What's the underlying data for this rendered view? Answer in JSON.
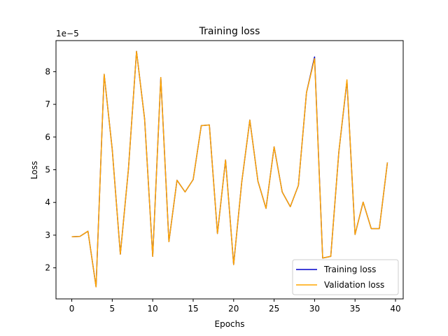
{
  "chart_data": {
    "type": "line",
    "title": "Training loss",
    "xlabel": "Epochs",
    "ylabel": "Loss",
    "y_offset_label": "1e−5",
    "xlim": [
      -1.95,
      40.95
    ],
    "ylim": [
      1.05,
      8.95
    ],
    "xticks": [
      0,
      5,
      10,
      15,
      20,
      25,
      30,
      35,
      40
    ],
    "xtick_labels": [
      "0",
      "5",
      "10",
      "15",
      "20",
      "25",
      "30",
      "35",
      "40"
    ],
    "yticks": [
      2,
      3,
      4,
      5,
      6,
      7,
      8
    ],
    "ytick_labels": [
      "2",
      "3",
      "4",
      "5",
      "6",
      "7",
      "8"
    ],
    "grid": false,
    "legend_position": "bottom-right",
    "x": [
      0,
      1,
      2,
      3,
      4,
      5,
      6,
      7,
      8,
      9,
      10,
      11,
      12,
      13,
      14,
      15,
      16,
      17,
      18,
      19,
      20,
      21,
      22,
      23,
      24,
      25,
      26,
      27,
      28,
      29,
      30,
      31,
      32,
      33,
      34,
      35,
      36,
      37,
      38,
      39
    ],
    "series": [
      {
        "name": "Training loss",
        "color": "#0000cc",
        "values": [
          2.95,
          2.96,
          3.12,
          1.42,
          7.92,
          5.62,
          2.42,
          5.02,
          8.62,
          6.55,
          2.35,
          7.82,
          2.8,
          4.68,
          4.32,
          4.7,
          6.35,
          6.37,
          3.05,
          5.3,
          2.1,
          4.62,
          6.52,
          4.65,
          3.82,
          5.7,
          4.32,
          3.87,
          4.52,
          7.36,
          8.45,
          2.3,
          2.35,
          5.55,
          7.72,
          3.02,
          4.01,
          3.2,
          3.2,
          5.22
        ]
      },
      {
        "name": "Validation loss",
        "color": "#ffa500",
        "values": [
          2.95,
          2.96,
          3.12,
          1.42,
          7.92,
          5.62,
          2.42,
          5.02,
          8.62,
          6.55,
          2.35,
          7.82,
          2.8,
          4.68,
          4.32,
          4.7,
          6.35,
          6.37,
          3.05,
          5.3,
          2.1,
          4.62,
          6.52,
          4.65,
          3.82,
          5.7,
          4.32,
          3.87,
          4.52,
          7.36,
          8.4,
          2.3,
          2.35,
          5.55,
          7.75,
          3.02,
          4.01,
          3.2,
          3.2,
          5.22
        ]
      }
    ]
  }
}
